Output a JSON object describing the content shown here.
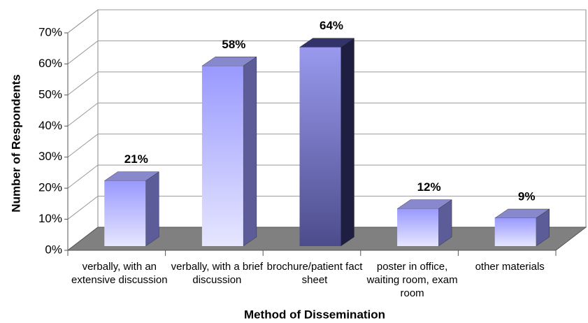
{
  "chart_data": {
    "type": "bar3d",
    "x_label": "Method of Dissemination",
    "y_label": "Number of Respondents",
    "categories": [
      "verbally, with an extensive discussion",
      "verbally, with a brief discussion",
      "brochure/patient fact sheet",
      "poster in office, waiting room, exam room",
      "other materials"
    ],
    "values": [
      21,
      58,
      64,
      12,
      9
    ],
    "value_labels": [
      "21%",
      "58%",
      "64%",
      "12%",
      "9%"
    ],
    "colors": [
      "#9999ff",
      "#9999ff",
      "#4c4c8c",
      "#9999ff",
      "#9999ff"
    ],
    "ylim": [
      0,
      70
    ],
    "yticks": [
      {
        "value": 0,
        "label": "0%"
      },
      {
        "value": 10,
        "label": "10%"
      },
      {
        "value": 20,
        "label": "20%"
      },
      {
        "value": 30,
        "label": "30%"
      },
      {
        "value": 40,
        "label": "40%"
      },
      {
        "value": 50,
        "label": "50%"
      },
      {
        "value": 60,
        "label": "60%"
      },
      {
        "value": 70,
        "label": "70%"
      }
    ],
    "grid": true
  }
}
